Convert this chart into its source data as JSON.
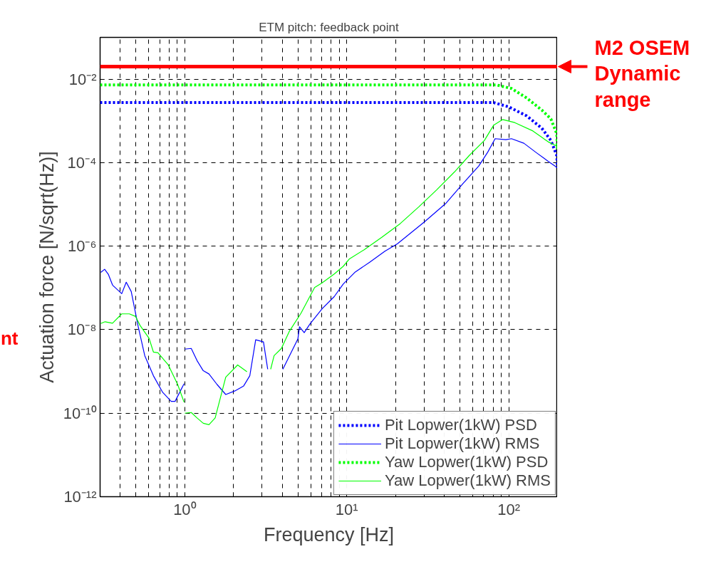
{
  "chart_data": {
    "type": "line",
    "title": "ETM pitch: feedback point",
    "xlabel": "Frequency [Hz]",
    "ylabel": "Actuation force [N/sqrt(Hz)]",
    "log": "xy",
    "grid": true,
    "legend": "bottom right",
    "marker": "none",
    "xlim": [
      0.3,
      200
    ],
    "ylim": [
      1e-12,
      0.1
    ],
    "xticks": [
      {
        "value": 0.3,
        "label": null
      },
      {
        "value": 0.4,
        "label": null
      },
      {
        "value": 0.5,
        "label": null
      },
      {
        "value": 0.6,
        "label": null
      },
      {
        "value": 0.7,
        "label": null
      },
      {
        "value": 0.8,
        "label": null
      },
      {
        "value": 0.9,
        "label": null
      },
      {
        "value": 1,
        "label": "10⁰"
      },
      {
        "value": 2,
        "label": null
      },
      {
        "value": 3,
        "label": null
      },
      {
        "value": 4,
        "label": null
      },
      {
        "value": 5,
        "label": null
      },
      {
        "value": 6,
        "label": null
      },
      {
        "value": 7,
        "label": null
      },
      {
        "value": 8,
        "label": null
      },
      {
        "value": 9,
        "label": null
      },
      {
        "value": 10,
        "label": "10¹"
      },
      {
        "value": 20,
        "label": null
      },
      {
        "value": 30,
        "label": null
      },
      {
        "value": 40,
        "label": null
      },
      {
        "value": 50,
        "label": null
      },
      {
        "value": 60,
        "label": null
      },
      {
        "value": 70,
        "label": null
      },
      {
        "value": 80,
        "label": null
      },
      {
        "value": 90,
        "label": null
      },
      {
        "value": 100,
        "label": "10²"
      }
    ],
    "yticks": [
      {
        "value": 1e-12,
        "label": "10⁻¹²"
      },
      {
        "value": 1e-10,
        "label": "10⁻¹⁰"
      },
      {
        "value": 1e-08,
        "label": "10⁻⁸"
      },
      {
        "value": 1e-06,
        "label": "10⁻⁶"
      },
      {
        "value": 0.0001,
        "label": "10⁻⁴"
      },
      {
        "value": 0.01,
        "label": "10⁻²"
      }
    ],
    "series": [
      {
        "name": "Pit Lopwer(1kW) PSD",
        "color": "#0000ff",
        "line_style": "dotted",
        "x": [
          0.3,
          80.8,
          100,
          129,
          160,
          182,
          198,
          200
        ],
        "values": [
          0.00274,
          0.00274,
          0.00217,
          0.00132,
          0.00067,
          0.000342,
          0.000148,
          7.6e-05
        ]
      },
      {
        "name": "Pit Lopwer(1kW) RMS",
        "color": "#0000ff",
        "line_style": "solid",
        "x": [
          0.303,
          0.32,
          0.337,
          0.358,
          0.408,
          0.435,
          0.467,
          0.516,
          0.566,
          0.64,
          0.73,
          0.824,
          0.871,
          0.99,
          0.995,
          1.0,
          1.096,
          1.19,
          1.3,
          1.41,
          1.58,
          1.79,
          2.04,
          2.31,
          2.52,
          2.74,
          3.06,
          3.25,
          3.6,
          4.03,
          4.99,
          5.11,
          5.46,
          5.93,
          7.04,
          8.37,
          9.51,
          11.2,
          13.9,
          17.2,
          20.5,
          30.1,
          40.7,
          52.7,
          65.3,
          74.1,
          82.4,
          96,
          104,
          124,
          147,
          175,
          200
        ],
        "values": [
          2.35e-07,
          2.8e-07,
          2.13e-07,
          1.17e-07,
          7.28e-08,
          1.37e-07,
          8.2e-08,
          1.17e-08,
          2.39e-09,
          7.9e-10,
          3.16e-10,
          1.92e-10,
          1.92e-10,
          5.1e-10,
          null,
          3.42e-09,
          3.56e-09,
          1.82e-09,
          1.04e-09,
          8.7e-10,
          4.9e-10,
          2.8e-10,
          3.42e-10,
          4.5e-10,
          7.9e-10,
          5.74e-09,
          5.1e-09,
          1.13e-09,
          null,
          1.13e-09,
          5.97e-09,
          1.17e-08,
          8.5e-09,
          1.37e-08,
          3.16e-08,
          6.2e-08,
          1.24e-07,
          2.35e-07,
          4.18e-07,
          7.57e-07,
          1.13e-06,
          3.78e-06,
          1.04e-05,
          3.29e-05,
          8.3e-05,
          0.000177,
          0.000375,
          0.000356,
          0.000375,
          0.000292,
          0.000177,
          0.000108,
          7.57e-05
        ]
      },
      {
        "name": "Yaw Lopwer(1kW) PSD",
        "color": "#00ff00",
        "line_style": "dotted",
        "x": [
          0.3,
          84,
          104,
          129,
          160,
          182,
          198,
          200
        ],
        "values": [
          0.00728,
          0.00728,
          0.00597,
          0.00355,
          0.00182,
          0.00112,
          0.00049,
          0.000214
        ]
      },
      {
        "name": "Yaw Lopwer(1kW) RMS",
        "color": "#00ff00",
        "line_style": "solid",
        "x": [
          0.303,
          0.322,
          0.358,
          0.408,
          0.455,
          0.497,
          0.529,
          0.602,
          0.64,
          0.683,
          0.791,
          0.903,
          0.99,
          0.995,
          1.0,
          1.096,
          1.19,
          1.3,
          1.41,
          1.54,
          1.79,
          2.12,
          2.42,
          3.0,
          3.39,
          3.56,
          3.95,
          4.41,
          5.22,
          6.33,
          7.04,
          8.37,
          9.51,
          10.4,
          12.8,
          16.5,
          21.4,
          27.8,
          35.8,
          46.2,
          57.1,
          70.8,
          80.8,
          91.8,
          109,
          141,
          175,
          198,
          200
        ],
        "values": [
          1.41e-08,
          1.55e-08,
          1.43e-08,
          2.39e-08,
          2.39e-08,
          2.07e-08,
          1.27e-08,
          6.2e-09,
          2.92e-09,
          2.8e-09,
          1.43e-09,
          4.9e-10,
          1.84e-10,
          null,
          1e-10,
          1.04e-10,
          7.7e-11,
          5.74e-11,
          5.3e-11,
          7.7e-11,
          7.28e-10,
          1.43e-09,
          9.8e-10,
          null,
          1.13e-09,
          2.39e-09,
          3.56e-09,
          9e-09,
          2.49e-08,
          1.02e-07,
          1.32e-07,
          2.16e-07,
          3.29e-07,
          4.98e-07,
          8.2e-07,
          1.64e-06,
          3.48e-06,
          8.7e-06,
          2.21e-05,
          5.97e-05,
          0.000149,
          0.000342,
          0.000794,
          0.00108,
          0.00091,
          0.000574,
          0.000316,
          0.000249,
          0.000208
        ]
      }
    ],
    "ref_lines": [
      {
        "axis": "y",
        "value": 0.02,
        "label": "M2 OSEM\nDynamic\nrange",
        "color": "#ff0000",
        "line_style": "solid"
      }
    ],
    "annotations": [
      "nt"
    ]
  }
}
